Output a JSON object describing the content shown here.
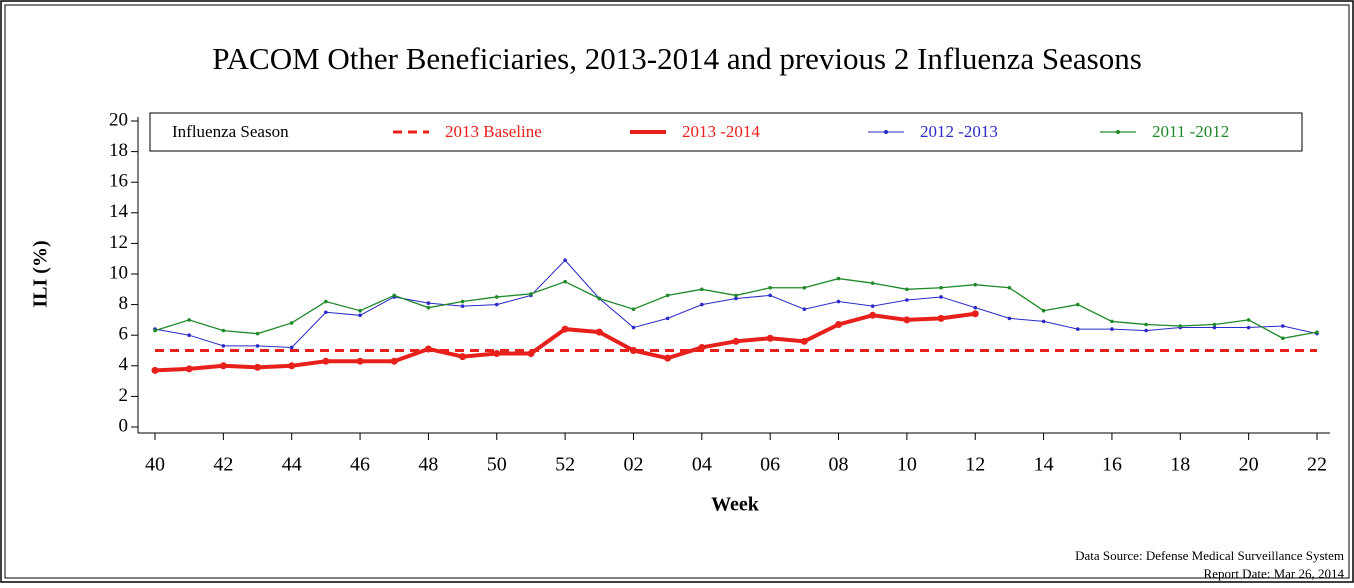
{
  "chart_data": {
    "type": "line",
    "title": "PACOM Other Beneficiaries, 2013-2014 and previous 2 Influenza Seasons",
    "x_label": "Week",
    "y_label": "ILI (%)",
    "legend_title": "Influenza Season",
    "source": "Data Source: Defense Medical Surveillance System",
    "report_date": "Report Date: Mar 26, 2014",
    "categories": [
      "40",
      null,
      "42",
      null,
      "44",
      null,
      "46",
      null,
      "48",
      null,
      "50",
      null,
      "52",
      null,
      "02",
      null,
      "04",
      null,
      "06",
      null,
      "08",
      null,
      "10",
      null,
      "12",
      null,
      "14",
      null,
      "16",
      null,
      "18",
      null,
      "20",
      null,
      "22"
    ],
    "ylim": [
      0,
      20
    ],
    "yticks": [
      0,
      2,
      4,
      6,
      8,
      10,
      12,
      14,
      16,
      18,
      20
    ],
    "series": [
      {
        "name": "2013 Baseline",
        "color": "#e8201c",
        "dashed": true,
        "line_width": 3,
        "marker": false,
        "values": [
          5,
          5,
          5,
          5,
          5,
          5,
          5,
          5,
          5,
          5,
          5,
          5,
          5,
          5,
          5,
          5,
          5,
          5,
          5,
          5,
          5,
          5,
          5,
          5,
          5,
          5,
          5,
          5,
          5,
          5,
          5,
          5,
          5,
          5,
          5
        ]
      },
      {
        "name": "2013 -2014",
        "color": "#e8201c",
        "dashed": false,
        "line_width": 4,
        "marker": true,
        "values": [
          3.7,
          3.8,
          4.0,
          3.9,
          4.0,
          4.3,
          4.3,
          4.3,
          5.1,
          4.6,
          4.8,
          4.8,
          6.4,
          6.2,
          5.0,
          4.5,
          5.2,
          5.6,
          5.8,
          5.6,
          6.7,
          7.3,
          7.0,
          7.1,
          7.4,
          null,
          null,
          null,
          null,
          null,
          null,
          null,
          null,
          null,
          null
        ]
      },
      {
        "name": "2012 -2013",
        "color": "#2a2ac8",
        "dashed": false,
        "line_width": 1,
        "marker": true,
        "values": [
          6.4,
          6.0,
          5.3,
          5.3,
          5.2,
          7.5,
          7.3,
          8.5,
          8.1,
          7.9,
          8.0,
          8.6,
          10.9,
          8.4,
          6.5,
          7.1,
          8.0,
          8.4,
          8.6,
          7.7,
          8.2,
          7.9,
          8.3,
          8.5,
          7.8,
          7.1,
          6.9,
          6.4,
          6.4,
          6.3,
          6.5,
          6.5,
          6.5,
          6.6,
          6.1
        ]
      },
      {
        "name": "2011 -2012",
        "color": "#1e8a2a",
        "dashed": false,
        "line_width": 1.3,
        "marker": true,
        "values": [
          6.3,
          7.0,
          6.3,
          6.1,
          6.8,
          8.2,
          7.6,
          8.6,
          7.8,
          8.2,
          8.5,
          8.7,
          9.5,
          8.4,
          7.7,
          8.6,
          9.0,
          8.6,
          9.1,
          9.1,
          9.7,
          9.4,
          9.0,
          9.1,
          9.3,
          9.1,
          7.6,
          8.0,
          6.9,
          6.7,
          6.6,
          6.7,
          7.0,
          5.8,
          6.2
        ]
      }
    ]
  }
}
